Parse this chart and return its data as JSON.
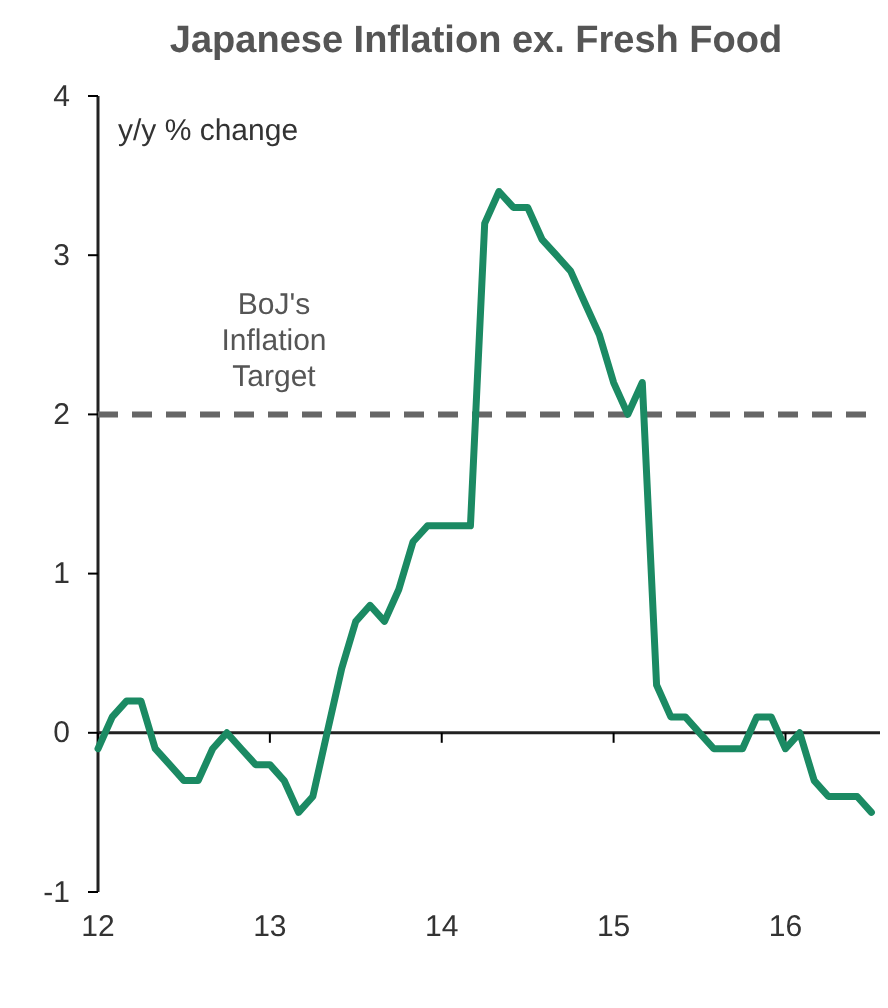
{
  "chart_data": {
    "type": "line",
    "title": "Japanese Inflation ex. Fresh Food",
    "ylabel": "y/y % change",
    "x": [
      12,
      12.083,
      12.167,
      12.25,
      12.333,
      12.417,
      12.5,
      12.583,
      12.667,
      12.75,
      12.833,
      12.917,
      13,
      13.083,
      13.167,
      13.25,
      13.333,
      13.417,
      13.5,
      13.583,
      13.667,
      13.75,
      13.833,
      13.917,
      14,
      14.083,
      14.167,
      14.25,
      14.333,
      14.417,
      14.5,
      14.583,
      14.667,
      14.75,
      14.833,
      14.917,
      15,
      15.083,
      15.167,
      15.25,
      15.333,
      15.417,
      15.5,
      15.583,
      15.667,
      15.75,
      15.833,
      15.917,
      16,
      16.083,
      16.167,
      16.25,
      16.333,
      16.417,
      16.5
    ],
    "series": [
      {
        "color": "#1b8a63",
        "values": [
          -0.1,
          0.1,
          0.2,
          0.2,
          -0.1,
          -0.2,
          -0.3,
          -0.3,
          -0.1,
          0,
          -0.1,
          -0.2,
          -0.2,
          -0.3,
          -0.5,
          -0.4,
          0,
          0.4,
          0.7,
          0.8,
          0.7,
          0.9,
          1.2,
          1.3,
          1.3,
          1.3,
          1.3,
          3.2,
          3.4,
          3.3,
          3.3,
          3.1,
          3,
          2.9,
          2.7,
          2.5,
          2.2,
          2,
          2.2,
          0.3,
          0.1,
          0.1,
          0,
          -0.1,
          -0.1,
          -0.1,
          0.1,
          0.1,
          -0.1,
          0,
          -0.3,
          -0.4,
          -0.4,
          -0.4,
          -0.5
        ]
      }
    ],
    "xlim": [
      12,
      16.55
    ],
    "xticks": [
      12,
      13,
      14,
      15,
      16
    ],
    "ylim": [
      -1,
      4
    ],
    "yticks": [
      -1,
      0,
      1,
      2,
      3,
      4
    ],
    "ref_lines": [
      {
        "axis": "y",
        "value": 2,
        "label": "BoJ's\nInflation\nTarget",
        "color": "#666666",
        "line_style": "dashed"
      }
    ],
    "grid": false,
    "marker": "none",
    "line_style": "solid"
  }
}
